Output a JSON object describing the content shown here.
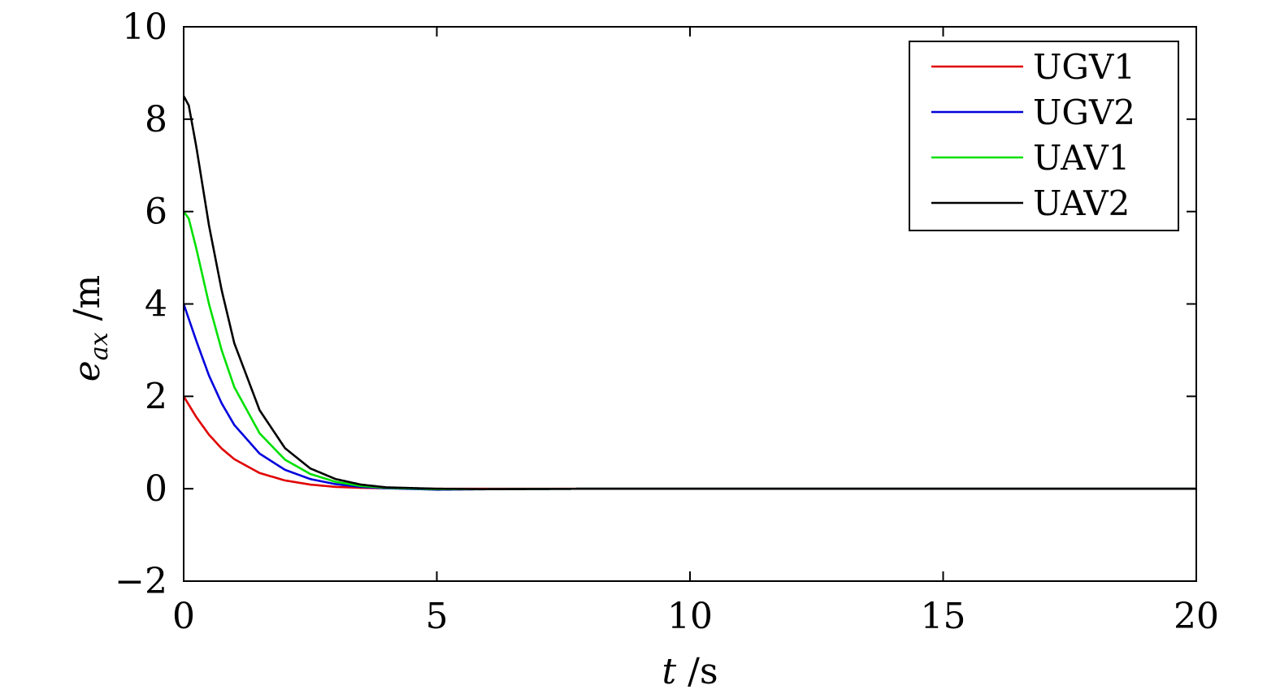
{
  "chart_data": {
    "type": "line",
    "title": "",
    "xlabel": {
      "var": "t",
      "unit": " /s"
    },
    "ylabel": {
      "var": "e",
      "sub": "ax",
      "unit": " /m"
    },
    "xlim": [
      0,
      20
    ],
    "ylim": [
      -2,
      10
    ],
    "xticks": [
      0,
      5,
      10,
      15,
      20
    ],
    "yticks": [
      -2,
      0,
      2,
      4,
      6,
      8,
      10
    ],
    "ytick_labels": [
      "−2",
      "0",
      "2",
      "4",
      "6",
      "8",
      "10"
    ],
    "grid": false,
    "legend_position": "top-right",
    "series": [
      {
        "name": "UGV1",
        "color": "#e00000",
        "initial": 2.0,
        "x": [
          0,
          0.25,
          0.5,
          0.75,
          1,
          1.5,
          2,
          2.5,
          3,
          3.5,
          4,
          5,
          6,
          8,
          10,
          15,
          20
        ],
        "y": [
          2.0,
          1.55,
          1.17,
          0.87,
          0.64,
          0.34,
          0.18,
          0.09,
          0.04,
          0.02,
          0.01,
          0,
          0,
          0,
          0,
          0,
          0
        ]
      },
      {
        "name": "UGV2",
        "color": "#0000dd",
        "initial": 4.0,
        "x": [
          0,
          0.25,
          0.5,
          0.75,
          1,
          1.5,
          2,
          2.5,
          3,
          3.5,
          4,
          5,
          6,
          8,
          10,
          15,
          20
        ],
        "y": [
          4.0,
          3.2,
          2.45,
          1.85,
          1.38,
          0.76,
          0.41,
          0.21,
          0.1,
          0.04,
          0.01,
          -0.02,
          -0.01,
          0,
          0,
          0,
          0
        ]
      },
      {
        "name": "UAV1",
        "color": "#00e000",
        "initial": 6.0,
        "x": [
          0,
          0.1,
          0.25,
          0.5,
          0.75,
          1,
          1.5,
          2,
          2.5,
          3,
          3.5,
          4,
          5,
          6,
          8,
          10,
          15,
          20
        ],
        "y": [
          6.0,
          5.85,
          5.2,
          4.0,
          3.0,
          2.2,
          1.2,
          0.63,
          0.32,
          0.15,
          0.06,
          0.02,
          -0.01,
          -0.01,
          0,
          0,
          0,
          0
        ]
      },
      {
        "name": "UAV2",
        "color": "#000000",
        "initial": 8.5,
        "x": [
          0,
          0.1,
          0.25,
          0.5,
          0.75,
          1,
          1.5,
          2,
          2.5,
          3,
          3.5,
          4,
          5,
          6,
          8,
          10,
          15,
          20
        ],
        "y": [
          8.5,
          8.3,
          7.4,
          5.7,
          4.3,
          3.15,
          1.7,
          0.88,
          0.44,
          0.21,
          0.09,
          0.03,
          0,
          -0.01,
          0,
          0,
          0,
          0
        ]
      }
    ]
  }
}
